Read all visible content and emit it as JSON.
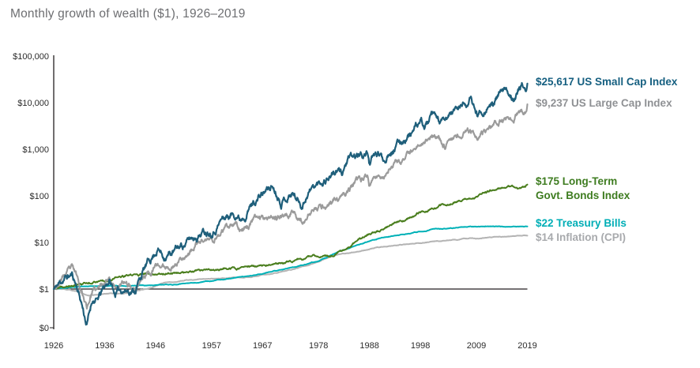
{
  "title": "Monthly growth of wealth ($1), 1926–2019",
  "chart_data": {
    "type": "line",
    "title": "Monthly growth of wealth ($1), 1926–2019",
    "y_scale": "log",
    "grid": false,
    "legend_position": "right-of-line-ends",
    "x_range": [
      1926,
      2019
    ],
    "x_ticks": [
      "1926",
      "1936",
      "1946",
      "1957",
      "1967",
      "1978",
      "1988",
      "1998",
      "2009",
      "2019"
    ],
    "y_ticks": [
      {
        "label": "$100,000",
        "value": 100000
      },
      {
        "label": "$10,000",
        "value": 10000
      },
      {
        "label": "$1,000",
        "value": 1000
      },
      {
        "label": "$100",
        "value": 100
      },
      {
        "label": "$10",
        "value": 10
      },
      {
        "label": "$1",
        "value": 1
      },
      {
        "label": "$0",
        "value": 0
      }
    ],
    "baseline": {
      "value": 1,
      "label": "$1"
    },
    "axis_color": "#231f20",
    "series": [
      {
        "id": "us-small-cap-index",
        "name": "US Small Cap Index",
        "final_value": 25617,
        "label_lines": [
          "$25,617 US Small Cap Index"
        ],
        "color": "#1f5f7b",
        "label_color": "#155f80",
        "volatility": 0.05,
        "seed": 11,
        "width": 2.2,
        "anchors": [
          [
            1926,
            1
          ],
          [
            1927,
            1.25
          ],
          [
            1928,
            1.7
          ],
          [
            1929.6,
            2.0
          ],
          [
            1930.5,
            1.2
          ],
          [
            1931.5,
            0.5
          ],
          [
            1932.5,
            0.17
          ],
          [
            1933.6,
            0.62
          ],
          [
            1934.5,
            0.55
          ],
          [
            1936.9,
            1.55
          ],
          [
            1938,
            0.8
          ],
          [
            1939.5,
            1.0
          ],
          [
            1941.9,
            0.95
          ],
          [
            1943.5,
            2.4
          ],
          [
            1945.5,
            5.2
          ],
          [
            1946.4,
            7.8
          ],
          [
            1947.5,
            5.3
          ],
          [
            1949.5,
            6.2
          ],
          [
            1952,
            10
          ],
          [
            1955,
            17
          ],
          [
            1957.5,
            21
          ],
          [
            1959,
            33
          ],
          [
            1961.9,
            44
          ],
          [
            1962.6,
            34
          ],
          [
            1965,
            72
          ],
          [
            1968.9,
            165
          ],
          [
            1970.6,
            85
          ],
          [
            1972.9,
            118
          ],
          [
            1974.8,
            66
          ],
          [
            1976,
            130
          ],
          [
            1978,
            180
          ],
          [
            1980.9,
            330
          ],
          [
            1982.6,
            310
          ],
          [
            1983.6,
            560
          ],
          [
            1986,
            700
          ],
          [
            1987.7,
            820
          ],
          [
            1987.95,
            550
          ],
          [
            1989.7,
            780
          ],
          [
            1990.9,
            580
          ],
          [
            1992,
            1050
          ],
          [
            1994,
            1400
          ],
          [
            1996,
            2200
          ],
          [
            1998.3,
            3600
          ],
          [
            1998.8,
            2950
          ],
          [
            2000.2,
            4700
          ],
          [
            2002.8,
            3300
          ],
          [
            2004,
            5900
          ],
          [
            2007.8,
            11500
          ],
          [
            2009.2,
            5400
          ],
          [
            2011.4,
            9800
          ],
          [
            2011.8,
            8300
          ],
          [
            2014,
            16000
          ],
          [
            2016.1,
            14000
          ],
          [
            2018,
            23000
          ],
          [
            2018.8,
            19500
          ],
          [
            2019,
            25617
          ]
        ]
      },
      {
        "id": "us-large-cap-index",
        "name": "US Large Cap Index",
        "final_value": 9237,
        "label_lines": [
          "$9,237 US Large Cap Index"
        ],
        "color": "#9b9b9b",
        "label_color": "#8f9194",
        "volatility": 0.04,
        "seed": 23,
        "width": 2.1,
        "anchors": [
          [
            1926,
            1
          ],
          [
            1927,
            1.35
          ],
          [
            1928,
            1.95
          ],
          [
            1929.6,
            2.6
          ],
          [
            1930.5,
            1.8
          ],
          [
            1931.5,
            0.95
          ],
          [
            1932.5,
            0.41
          ],
          [
            1933.6,
            0.95
          ],
          [
            1934.5,
            0.88
          ],
          [
            1936.9,
            2.0
          ],
          [
            1938,
            1.15
          ],
          [
            1939.5,
            1.3
          ],
          [
            1941.9,
            1.05
          ],
          [
            1943.5,
            1.8
          ],
          [
            1945.5,
            2.7
          ],
          [
            1946.4,
            3.2
          ],
          [
            1947.5,
            2.9
          ],
          [
            1949.5,
            3.3
          ],
          [
            1952,
            5.8
          ],
          [
            1955,
            10.5
          ],
          [
            1957.5,
            11.5
          ],
          [
            1959,
            17
          ],
          [
            1961.9,
            22
          ],
          [
            1962.6,
            18
          ],
          [
            1965,
            30
          ],
          [
            1968.9,
            41
          ],
          [
            1970.6,
            33
          ],
          [
            1972.9,
            48
          ],
          [
            1974.8,
            27
          ],
          [
            1976,
            42
          ],
          [
            1978,
            52
          ],
          [
            1980.9,
            80
          ],
          [
            1982.6,
            82
          ],
          [
            1983.6,
            120
          ],
          [
            1986,
            195
          ],
          [
            1987.7,
            265
          ],
          [
            1987.95,
            185
          ],
          [
            1989.7,
            290
          ],
          [
            1990.9,
            265
          ],
          [
            1992,
            400
          ],
          [
            1994,
            470
          ],
          [
            1996,
            760
          ],
          [
            1998.3,
            1500
          ],
          [
            2000.2,
            2100
          ],
          [
            2002.8,
            1250
          ],
          [
            2004,
            1750
          ],
          [
            2007.8,
            2500
          ],
          [
            2009.2,
            1450
          ],
          [
            2011.4,
            2400
          ],
          [
            2014,
            4400
          ],
          [
            2016.1,
            4700
          ],
          [
            2018,
            6800
          ],
          [
            2018.8,
            6500
          ],
          [
            2019,
            9237
          ]
        ]
      },
      {
        "id": "long-term-govt-bonds-index",
        "name": "Long-Term Govt. Bonds Index",
        "final_value": 175,
        "label_lines": [
          "$175 Long-Term",
          "Govt. Bonds Index"
        ],
        "color": "#4a7e1e",
        "label_color": "#3e7c20",
        "volatility": 0.013,
        "seed": 37,
        "width": 2,
        "anchors": [
          [
            1926,
            1
          ],
          [
            1928,
            1.07
          ],
          [
            1930,
            1.18
          ],
          [
            1932,
            1.32
          ],
          [
            1934,
            1.45
          ],
          [
            1936,
            1.58
          ],
          [
            1939,
            1.8
          ],
          [
            1941,
            1.93
          ],
          [
            1946,
            2.15
          ],
          [
            1950,
            2.28
          ],
          [
            1953,
            2.3
          ],
          [
            1957,
            2.5
          ],
          [
            1960,
            2.7
          ],
          [
            1965,
            3.0
          ],
          [
            1967,
            3.05
          ],
          [
            1970,
            3.4
          ],
          [
            1972,
            3.9
          ],
          [
            1975,
            4.4
          ],
          [
            1977,
            5.0
          ],
          [
            1979,
            5.15
          ],
          [
            1981,
            5.4
          ],
          [
            1984,
            7.8
          ],
          [
            1986,
            11.5
          ],
          [
            1988,
            15.5
          ],
          [
            1990,
            18
          ],
          [
            1993,
            26
          ],
          [
            1995,
            30
          ],
          [
            1998,
            46
          ],
          [
            2000,
            50
          ],
          [
            2002,
            62
          ],
          [
            2005,
            74
          ],
          [
            2008,
            90
          ],
          [
            2009,
            93
          ],
          [
            2011,
            118
          ],
          [
            2012,
            132
          ],
          [
            2014,
            142
          ],
          [
            2016,
            162
          ],
          [
            2017,
            152
          ],
          [
            2018.5,
            152
          ],
          [
            2019,
            175
          ]
        ]
      },
      {
        "id": "treasury-bills",
        "name": "Treasury Bills",
        "final_value": 22,
        "label_lines": [
          "$22 Treasury Bills"
        ],
        "color": "#00b1b7",
        "label_color": "#00aeb6",
        "volatility": 0.004,
        "seed": 41,
        "width": 2,
        "anchors": [
          [
            1926,
            1
          ],
          [
            1930,
            1.12
          ],
          [
            1935,
            1.16
          ],
          [
            1940,
            1.17
          ],
          [
            1945,
            1.2
          ],
          [
            1950,
            1.27
          ],
          [
            1955,
            1.4
          ],
          [
            1960,
            1.63
          ],
          [
            1965,
            1.95
          ],
          [
            1970,
            2.5
          ],
          [
            1973,
            2.95
          ],
          [
            1975,
            3.3
          ],
          [
            1978,
            4.0
          ],
          [
            1980,
            5.0
          ],
          [
            1982,
            6.4
          ],
          [
            1985,
            8.2
          ],
          [
            1988,
            10.6
          ],
          [
            1990,
            12.3
          ],
          [
            1993,
            13.9
          ],
          [
            1995,
            15.1
          ],
          [
            1998,
            17.3
          ],
          [
            2001,
            19.4
          ],
          [
            2004,
            20.1
          ],
          [
            2007,
            21.4
          ],
          [
            2009,
            21.9
          ],
          [
            2012,
            21.95
          ],
          [
            2015,
            21.97
          ],
          [
            2019,
            22
          ]
        ]
      },
      {
        "id": "inflation-cpi",
        "name": "Inflation (CPI)",
        "final_value": 14,
        "label_lines": [
          "$14 Inflation (CPI)"
        ],
        "color": "#b4b4b4",
        "label_color": "#a8aaad",
        "volatility": 0.004,
        "seed": 53,
        "width": 2,
        "anchors": [
          [
            1926,
            1
          ],
          [
            1929,
            0.97
          ],
          [
            1931,
            0.85
          ],
          [
            1933,
            0.72
          ],
          [
            1934.5,
            0.77
          ],
          [
            1937,
            0.82
          ],
          [
            1939.5,
            0.79
          ],
          [
            1941,
            0.85
          ],
          [
            1943,
            0.97
          ],
          [
            1945,
            1.05
          ],
          [
            1947,
            1.3
          ],
          [
            1948.5,
            1.42
          ],
          [
            1950,
            1.4
          ],
          [
            1952,
            1.55
          ],
          [
            1957,
            1.66
          ],
          [
            1960,
            1.72
          ],
          [
            1965,
            1.83
          ],
          [
            1970,
            2.25
          ],
          [
            1974,
            2.85
          ],
          [
            1978,
            3.8
          ],
          [
            1980,
            4.8
          ],
          [
            1982,
            5.6
          ],
          [
            1985,
            6.2
          ],
          [
            1988,
            7.2
          ],
          [
            1990,
            7.9
          ],
          [
            1995,
            9.0
          ],
          [
            1998,
            9.7
          ],
          [
            2001,
            10.5
          ],
          [
            2005,
            11.4
          ],
          [
            2008,
            12.4
          ],
          [
            2009,
            12.3
          ],
          [
            2013,
            13.1
          ],
          [
            2016,
            13.5
          ],
          [
            2019,
            14
          ]
        ]
      }
    ]
  }
}
